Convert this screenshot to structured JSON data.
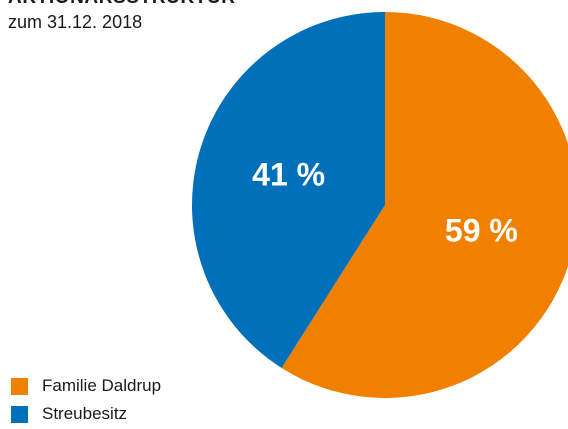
{
  "title": "AKTIONÄRSSTRUKTUR",
  "subtitle": "zum 31.12. 2018",
  "chart_data": {
    "type": "pie",
    "title": "AKTIONÄRSSTRUKTUR",
    "subtitle": "zum 31.12. 2018",
    "start_angle_deg": 0,
    "direction": "clockwise",
    "legend_position": "bottom-left",
    "slices": [
      {
        "name": "Familie Daldrup",
        "value": 59,
        "label": "59 %",
        "color": "#F08100"
      },
      {
        "name": "Streubesitz",
        "value": 41,
        "label": "41 %",
        "color": "#0070BA"
      }
    ]
  }
}
